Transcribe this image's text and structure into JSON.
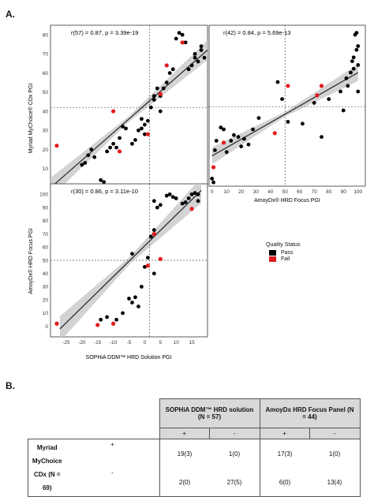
{
  "figure": {
    "panel_a_label": "A.",
    "panel_b_label": "B."
  },
  "legend": {
    "title": "Quality Status",
    "items": [
      {
        "label": "Pass",
        "color": "#000000"
      },
      {
        "label": "Fail",
        "color": "#e31a1c"
      }
    ]
  },
  "chart_data": [
    {
      "type": "scatter",
      "annotation": "r(57) = 0.87, p = 3.39e-19",
      "xlabel": "",
      "ylabel": "Myriad MyChoice® CDx PGI",
      "xlim": [
        -30,
        20
      ],
      "ylim": [
        0,
        85
      ],
      "xticks": [],
      "yticks": [
        10,
        20,
        30,
        40,
        50,
        60,
        70,
        80
      ],
      "ref_x": 1.5,
      "ref_y": 42,
      "fit": [
        [
          -30,
          0
        ],
        [
          20,
          72
        ]
      ],
      "points_pass": [
        [
          -20,
          12
        ],
        [
          -19,
          13
        ],
        [
          -18,
          17
        ],
        [
          -17,
          20
        ],
        [
          -16,
          16
        ],
        [
          -14,
          4
        ],
        [
          -13,
          3
        ],
        [
          -12,
          19
        ],
        [
          -11,
          21
        ],
        [
          -10,
          23
        ],
        [
          -9,
          21
        ],
        [
          -8,
          26
        ],
        [
          -7,
          32
        ],
        [
          -6,
          31
        ],
        [
          -4,
          23
        ],
        [
          -3,
          25
        ],
        [
          -2,
          30
        ],
        [
          -1,
          31
        ],
        [
          0,
          33
        ],
        [
          -1,
          36
        ],
        [
          0,
          28
        ],
        [
          1,
          35
        ],
        [
          2,
          42
        ],
        [
          3,
          46
        ],
        [
          3,
          48
        ],
        [
          4,
          52
        ],
        [
          5,
          48
        ],
        [
          5,
          40
        ],
        [
          6,
          52
        ],
        [
          7,
          55
        ],
        [
          8,
          60
        ],
        [
          9,
          62
        ],
        [
          10,
          78
        ],
        [
          11,
          81
        ],
        [
          12,
          80
        ],
        [
          13,
          76
        ],
        [
          14,
          62
        ],
        [
          15,
          64
        ],
        [
          16,
          68
        ],
        [
          16,
          70
        ],
        [
          17,
          66
        ],
        [
          18,
          72
        ],
        [
          18,
          74
        ],
        [
          19,
          68
        ]
      ],
      "points_fail": [
        [
          -28,
          22
        ],
        [
          -10,
          40
        ],
        [
          -8,
          19
        ],
        [
          1,
          28
        ],
        [
          5,
          49
        ],
        [
          7,
          64
        ],
        [
          12,
          76
        ]
      ]
    },
    {
      "type": "scatter",
      "annotation": "r(42) = 0.84, p = 5.69e-13",
      "xlabel": "AmoyDx® HRD Focus PGI",
      "ylabel": "",
      "xlim": [
        -2,
        105
      ],
      "ylim": [
        0,
        85
      ],
      "xticks": [
        0,
        10,
        20,
        30,
        40,
        50,
        60,
        70,
        80,
        90,
        100
      ],
      "yticks": [],
      "ref_x": 50,
      "ref_y": 42,
      "fit": [
        [
          0,
          16
        ],
        [
          100,
          60
        ]
      ],
      "points_pass": [
        [
          0,
          4
        ],
        [
          1,
          2
        ],
        [
          2,
          19
        ],
        [
          3,
          24
        ],
        [
          6,
          31
        ],
        [
          8,
          30
        ],
        [
          10,
          18
        ],
        [
          13,
          24
        ],
        [
          15,
          27
        ],
        [
          18,
          26
        ],
        [
          20,
          21
        ],
        [
          22,
          25
        ],
        [
          25,
          22
        ],
        [
          28,
          30
        ],
        [
          32,
          36
        ],
        [
          45,
          55
        ],
        [
          48,
          46
        ],
        [
          52,
          34
        ],
        [
          62,
          33
        ],
        [
          70,
          44
        ],
        [
          75,
          26
        ],
        [
          80,
          46
        ],
        [
          88,
          50
        ],
        [
          90,
          40
        ],
        [
          92,
          57
        ],
        [
          93,
          53
        ],
        [
          95,
          60
        ],
        [
          96,
          66
        ],
        [
          97,
          68
        ],
        [
          97,
          62
        ],
        [
          98,
          80
        ],
        [
          99,
          81
        ],
        [
          99,
          72
        ],
        [
          100,
          74
        ],
        [
          100,
          64
        ],
        [
          100,
          50
        ]
      ],
      "points_fail": [
        [
          1,
          10
        ],
        [
          8,
          23
        ],
        [
          43,
          28
        ],
        [
          52,
          53
        ],
        [
          72,
          48
        ],
        [
          75,
          53
        ]
      ]
    },
    {
      "type": "scatter",
      "annotation": "r(30) = 0.86, p = 3.11e-10",
      "xlabel": "SOPHiA DDM™ HRD Solution PGI",
      "ylabel": "AmoyDx® HRD Focus PGI",
      "xlim": [
        -30,
        20
      ],
      "ylim": [
        -8,
        108
      ],
      "xticks": [
        -25,
        -20,
        -15,
        -10,
        -5,
        0,
        5,
        10,
        15
      ],
      "yticks": [
        0,
        10,
        20,
        30,
        40,
        50,
        60,
        70,
        80,
        90,
        100
      ],
      "ref_x": 1.5,
      "ref_y": 50,
      "fit": [
        [
          -27,
          -2
        ],
        [
          18,
          103
        ]
      ],
      "points_pass": [
        [
          -14,
          5
        ],
        [
          -12,
          7
        ],
        [
          -9,
          5
        ],
        [
          -7,
          10
        ],
        [
          -5,
          21
        ],
        [
          -4,
          18
        ],
        [
          -3,
          22
        ],
        [
          -2,
          15
        ],
        [
          -1,
          30
        ],
        [
          0,
          45
        ],
        [
          1,
          52
        ],
        [
          2,
          68
        ],
        [
          3,
          73
        ],
        [
          3,
          95
        ],
        [
          4,
          90
        ],
        [
          5,
          92
        ],
        [
          7,
          99
        ],
        [
          8,
          100
        ],
        [
          9,
          98
        ],
        [
          10,
          97
        ],
        [
          12,
          93
        ],
        [
          13,
          94
        ],
        [
          14,
          97
        ],
        [
          15,
          100
        ],
        [
          16,
          101
        ],
        [
          17,
          100
        ],
        [
          17,
          95
        ],
        [
          3,
          40
        ],
        [
          -4,
          55
        ]
      ],
      "points_fail": [
        [
          -28,
          2
        ],
        [
          -15,
          1
        ],
        [
          -10,
          2
        ],
        [
          1,
          46
        ],
        [
          3,
          70
        ],
        [
          5,
          51
        ],
        [
          15,
          89
        ]
      ]
    }
  ],
  "table": {
    "col_group_1": "SOPHiA DDM™ HRD solution (N = 57)",
    "col_group_2": "AmoyDx HRD Focus Panel (N = 44)",
    "plus": "+",
    "minus": "-",
    "row_label_line1": "Myriad",
    "row_label_line2": "MyChoice",
    "row_label_line3": "CDx (N = 69)",
    "rows": [
      {
        "sign": "+",
        "values": [
          "19(3)",
          "1(0)",
          "17(3)",
          "1(0)"
        ]
      },
      {
        "sign": "-",
        "values": [
          "2(0)",
          "27(5)",
          "6(0)",
          "13(4)"
        ]
      }
    ]
  }
}
